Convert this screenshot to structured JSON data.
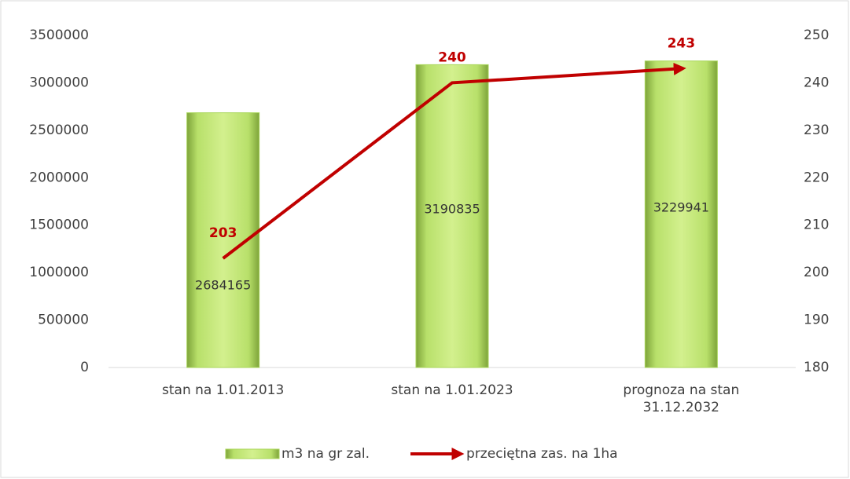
{
  "chart_data": {
    "type": "bar",
    "categories": [
      "stan na 1.01.2013",
      "stan na 1.01.2023",
      "prognoza na stan 31.12.2032"
    ],
    "series": [
      {
        "name": "m3 na gr zal.",
        "type": "bar",
        "color": "#a9d65a",
        "values": [
          2684165,
          3190835,
          3229941
        ]
      },
      {
        "name": "przeciętna zas. na 1ha",
        "type": "line",
        "axis": "y2",
        "color": "#c00000",
        "values": [
          203,
          240,
          243
        ]
      }
    ],
    "ylim": [
      0,
      3500000
    ],
    "yticks": [
      0,
      500000,
      1000000,
      1500000,
      2000000,
      2500000,
      3000000,
      3500000
    ],
    "y2lim": [
      180,
      250
    ],
    "y2ticks": [
      180,
      190,
      200,
      210,
      220,
      230,
      240,
      250
    ],
    "grid": false,
    "legend": "bottom"
  }
}
